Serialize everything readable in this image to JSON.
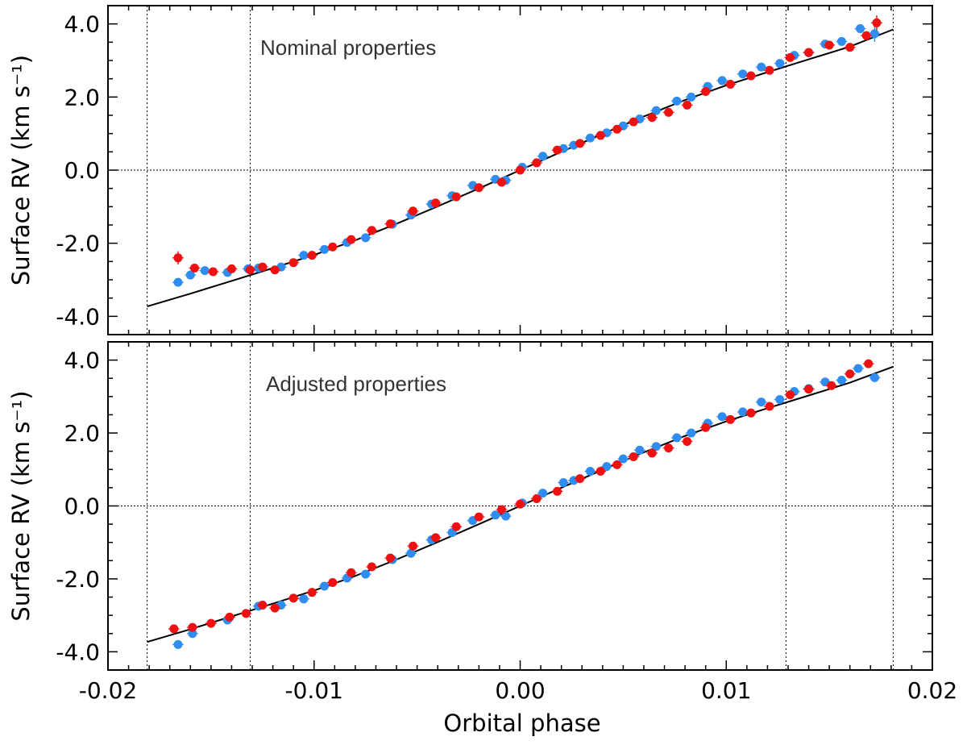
{
  "xlabel": "Orbital phase",
  "x_tick_labels": [
    "-0.02",
    "-0.01",
    "0.00",
    "0.01",
    "0.02"
  ],
  "colors": {
    "series_blue": "#2f8cf0",
    "series_red": "#ee1111",
    "model": "#000000"
  },
  "chart_data": [
    {
      "type": "scatter",
      "title": "",
      "annotation": "Nominal properties",
      "xlabel": "Orbital phase",
      "ylabel": "Surface RV (km s⁻¹)",
      "xlim": [
        -0.02,
        0.02
      ],
      "ylim": [
        -4.5,
        4.5
      ],
      "y_ticks": [
        4.0,
        2.0,
        0.0,
        -2.0,
        -4.0
      ],
      "y_tick_labels": [
        "4.0",
        "2.0",
        "0.0",
        "-2.0",
        "-4.0"
      ],
      "vertical_lines": [
        -0.0181,
        -0.0131,
        0.0129,
        0.0181
      ],
      "horizontal_lines": [
        0.0
      ],
      "model_line": {
        "name": "model",
        "x": [
          -0.0181,
          -0.016,
          -0.014,
          -0.012,
          -0.01,
          -0.008,
          -0.006,
          -0.004,
          -0.002,
          0.0,
          0.002,
          0.004,
          0.006,
          0.008,
          0.01,
          0.012,
          0.014,
          0.016,
          0.0181
        ],
        "y": [
          -3.73,
          -3.38,
          -3.03,
          -2.68,
          -2.32,
          -1.92,
          -1.47,
          -0.99,
          -0.5,
          0.0,
          0.5,
          0.99,
          1.47,
          1.92,
          2.32,
          2.68,
          3.03,
          3.38,
          3.85
        ]
      },
      "series": [
        {
          "name": "blue",
          "x": [
            -0.0166,
            -0.016,
            -0.0153,
            -0.0142,
            -0.0132,
            -0.0127,
            -0.0116,
            -0.0105,
            -0.0095,
            -0.0084,
            -0.0075,
            -0.0062,
            -0.0053,
            -0.0043,
            -0.0033,
            -0.0023,
            -0.0012,
            -0.0007,
            0.0001,
            0.0011,
            0.0021,
            0.0026,
            0.0034,
            0.0042,
            0.005,
            0.0058,
            0.0066,
            0.0076,
            0.0083,
            0.0091,
            0.0098,
            0.0108,
            0.0117,
            0.0126,
            0.0133,
            0.014,
            0.0148,
            0.0156,
            0.0165,
            0.0172
          ],
          "y": [
            -3.07,
            -2.87,
            -2.75,
            -2.8,
            -2.7,
            -2.68,
            -2.65,
            -2.33,
            -2.17,
            -1.98,
            -1.85,
            -1.48,
            -1.23,
            -0.93,
            -0.7,
            -0.42,
            -0.25,
            -0.28,
            0.08,
            0.38,
            0.59,
            0.68,
            0.88,
            1.02,
            1.21,
            1.4,
            1.63,
            1.89,
            2.0,
            2.29,
            2.45,
            2.63,
            2.82,
            2.92,
            3.14,
            3.21,
            3.45,
            3.52,
            3.87,
            3.73
          ],
          "err": [
            0.06,
            0.05,
            0.05,
            0.05,
            0.05,
            0.05,
            0.05,
            0.05,
            0.05,
            0.05,
            0.05,
            0.05,
            0.05,
            0.05,
            0.05,
            0.05,
            0.05,
            0.05,
            0.05,
            0.05,
            0.05,
            0.05,
            0.05,
            0.05,
            0.05,
            0.05,
            0.05,
            0.05,
            0.05,
            0.05,
            0.05,
            0.05,
            0.05,
            0.05,
            0.05,
            0.05,
            0.05,
            0.05,
            0.06,
            0.22
          ]
        },
        {
          "name": "red",
          "x": [
            -0.0166,
            -0.0158,
            -0.0149,
            -0.014,
            -0.0131,
            -0.0125,
            -0.0119,
            -0.011,
            -0.0101,
            -0.0091,
            -0.0082,
            -0.0072,
            -0.0063,
            -0.0052,
            -0.0041,
            -0.0031,
            -0.002,
            -0.0009,
            0.0,
            0.0008,
            0.0018,
            0.0029,
            0.0039,
            0.0047,
            0.0055,
            0.0064,
            0.0072,
            0.0081,
            0.009,
            0.0102,
            0.0112,
            0.0121,
            0.0131,
            0.014,
            0.015,
            0.016,
            0.0168,
            0.0173
          ],
          "y": [
            -2.4,
            -2.68,
            -2.78,
            -2.7,
            -2.73,
            -2.65,
            -2.73,
            -2.53,
            -2.33,
            -2.1,
            -1.9,
            -1.65,
            -1.47,
            -1.12,
            -0.9,
            -0.73,
            -0.48,
            -0.33,
            0.0,
            0.2,
            0.55,
            0.73,
            0.95,
            1.12,
            1.32,
            1.44,
            1.58,
            1.78,
            2.15,
            2.35,
            2.58,
            2.73,
            3.08,
            3.22,
            3.42,
            3.36,
            3.68,
            4.03
          ],
          "err": [
            0.18,
            0.06,
            0.06,
            0.06,
            0.06,
            0.06,
            0.06,
            0.06,
            0.06,
            0.06,
            0.06,
            0.06,
            0.06,
            0.06,
            0.06,
            0.06,
            0.06,
            0.06,
            0.06,
            0.06,
            0.06,
            0.06,
            0.06,
            0.06,
            0.06,
            0.06,
            0.06,
            0.06,
            0.06,
            0.06,
            0.06,
            0.06,
            0.06,
            0.06,
            0.06,
            0.06,
            0.06,
            0.2
          ]
        }
      ]
    },
    {
      "type": "scatter",
      "title": "",
      "annotation": "Adjusted properties",
      "xlabel": "Orbital phase",
      "ylabel": "Surface RV (km s⁻¹)",
      "xlim": [
        -0.02,
        0.02
      ],
      "ylim": [
        -4.5,
        4.5
      ],
      "y_ticks": [
        4.0,
        2.0,
        0.0,
        -2.0,
        -4.0
      ],
      "y_tick_labels": [
        "4.0",
        "2.0",
        "0.0",
        "-2.0",
        "-4.0"
      ],
      "vertical_lines": [
        -0.0181,
        -0.0131,
        0.0129,
        0.0181
      ],
      "horizontal_lines": [
        0.0
      ],
      "model_line": {
        "name": "model",
        "x": [
          -0.0181,
          -0.016,
          -0.014,
          -0.012,
          -0.01,
          -0.008,
          -0.006,
          -0.004,
          -0.002,
          0.0,
          0.002,
          0.004,
          0.006,
          0.008,
          0.01,
          0.012,
          0.014,
          0.016,
          0.0181
        ],
        "y": [
          -3.73,
          -3.38,
          -3.03,
          -2.68,
          -2.32,
          -1.92,
          -1.47,
          -0.99,
          -0.5,
          0.0,
          0.5,
          0.99,
          1.47,
          1.92,
          2.32,
          2.68,
          3.03,
          3.38,
          3.82
        ]
      },
      "series": [
        {
          "name": "blue",
          "x": [
            -0.0166,
            -0.0159,
            -0.0142,
            -0.0127,
            -0.0116,
            -0.0105,
            -0.0095,
            -0.0084,
            -0.0075,
            -0.0062,
            -0.0053,
            -0.0043,
            -0.0033,
            -0.0023,
            -0.0012,
            -0.0007,
            0.0001,
            0.0011,
            0.0021,
            0.0026,
            0.0034,
            0.0042,
            0.005,
            0.0058,
            0.0066,
            0.0076,
            0.0083,
            0.0091,
            0.0098,
            0.0108,
            0.0117,
            0.0126,
            0.0133,
            0.014,
            0.0148,
            0.0156,
            0.0164,
            0.0172
          ],
          "y": [
            -3.8,
            -3.5,
            -3.13,
            -2.75,
            -2.72,
            -2.55,
            -2.2,
            -1.98,
            -1.87,
            -1.47,
            -1.3,
            -0.93,
            -0.73,
            -0.4,
            -0.25,
            -0.28,
            0.08,
            0.35,
            0.64,
            0.7,
            0.95,
            1.08,
            1.29,
            1.53,
            1.63,
            1.87,
            2.0,
            2.27,
            2.45,
            2.58,
            2.85,
            2.92,
            3.14,
            3.22,
            3.4,
            3.45,
            3.77,
            3.52
          ]
        },
        {
          "name": "red",
          "x": [
            -0.0168,
            -0.0159,
            -0.015,
            -0.0141,
            -0.0133,
            -0.0125,
            -0.0119,
            -0.011,
            -0.0101,
            -0.0091,
            -0.0082,
            -0.0072,
            -0.0063,
            -0.0052,
            -0.0041,
            -0.0031,
            -0.002,
            -0.0009,
            0.0,
            0.0008,
            0.0018,
            0.0029,
            0.0039,
            0.0047,
            0.0055,
            0.0064,
            0.0072,
            0.0081,
            0.009,
            0.0102,
            0.0112,
            0.0121,
            0.0131,
            0.014,
            0.0151,
            0.016,
            0.0169
          ],
          "y": [
            -3.37,
            -3.33,
            -3.22,
            -3.05,
            -2.95,
            -2.72,
            -2.8,
            -2.53,
            -2.37,
            -2.1,
            -1.83,
            -1.67,
            -1.43,
            -1.1,
            -0.87,
            -0.57,
            -0.3,
            -0.1,
            0.05,
            0.2,
            0.4,
            0.75,
            0.95,
            1.13,
            1.35,
            1.45,
            1.59,
            1.77,
            2.15,
            2.37,
            2.55,
            2.73,
            3.05,
            3.2,
            3.3,
            3.62,
            3.9
          ]
        }
      ]
    }
  ]
}
